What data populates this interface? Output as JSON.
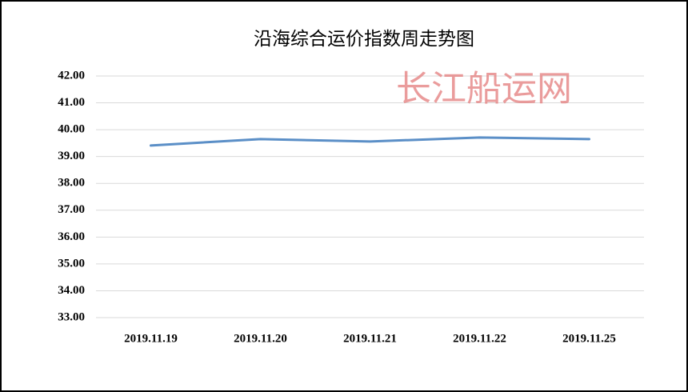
{
  "chart_data": {
    "type": "line",
    "title": "沿海综合运价指数周走势图",
    "watermark": "长江船运网",
    "categories": [
      "2019.11.19",
      "2019.11.20",
      "2019.11.21",
      "2019.11.22",
      "2019.11.25"
    ],
    "series": [
      {
        "color": "#5b8fc7",
        "values": [
          39.41,
          39.65,
          39.56,
          39.71,
          39.65
        ]
      }
    ],
    "ylim": [
      33,
      42
    ],
    "yticks": [
      {
        "value": 33,
        "label": "33.00"
      },
      {
        "value": 34,
        "label": "34.00"
      },
      {
        "value": 35,
        "label": "35.00"
      },
      {
        "value": 36,
        "label": "36.00"
      },
      {
        "value": 37,
        "label": "37.00"
      },
      {
        "value": 38,
        "label": "38.00"
      },
      {
        "value": 39,
        "label": "39.00"
      },
      {
        "value": 40,
        "label": "40.00"
      },
      {
        "value": 41,
        "label": "41.00"
      },
      {
        "value": 42,
        "label": "42.00"
      }
    ],
    "grid": true
  }
}
